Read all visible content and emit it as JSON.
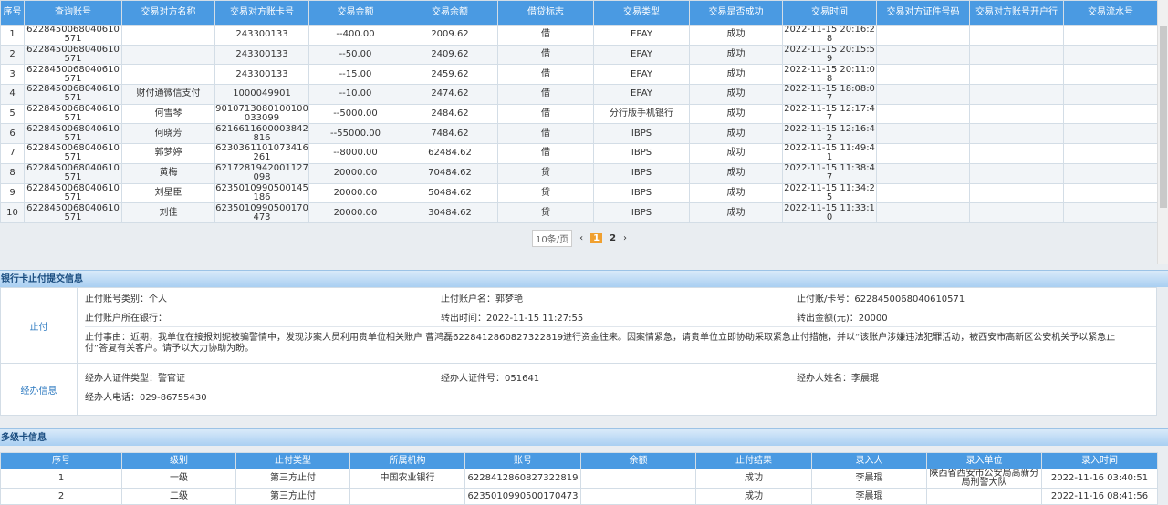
{
  "transactions": {
    "headers": [
      "序号",
      "查询账号",
      "交易对方名称",
      "交易对方账卡号",
      "交易金额",
      "交易余额",
      "借贷标志",
      "交易类型",
      "交易是否成功",
      "交易时间",
      "交易对方证件号码",
      "交易对方账号开户行",
      "交易流水号"
    ],
    "rows": [
      [
        "1",
        "6228450068040610571",
        "",
        "243300133",
        "--400.00",
        "2009.62",
        "借",
        "EPAY",
        "成功",
        "2022-11-15 20:16:28",
        "",
        "",
        ""
      ],
      [
        "2",
        "6228450068040610571",
        "",
        "243300133",
        "--50.00",
        "2409.62",
        "借",
        "EPAY",
        "成功",
        "2022-11-15 20:15:59",
        "",
        "",
        ""
      ],
      [
        "3",
        "6228450068040610571",
        "",
        "243300133",
        "--15.00",
        "2459.62",
        "借",
        "EPAY",
        "成功",
        "2022-11-15 20:11:08",
        "",
        "",
        ""
      ],
      [
        "4",
        "6228450068040610571",
        "财付通微信支付",
        "1000049901",
        "--10.00",
        "2474.62",
        "借",
        "EPAY",
        "成功",
        "2022-11-15 18:08:07",
        "",
        "",
        ""
      ],
      [
        "5",
        "6228450068040610571",
        "何雪琴",
        "9010713080100100033099",
        "--5000.00",
        "2484.62",
        "借",
        "分行版手机银行",
        "成功",
        "2022-11-15 12:17:47",
        "",
        "",
        ""
      ],
      [
        "6",
        "6228450068040610571",
        "何晓芳",
        "6216611600003842816",
        "--55000.00",
        "7484.62",
        "借",
        "IBPS",
        "成功",
        "2022-11-15 12:16:42",
        "",
        "",
        ""
      ],
      [
        "7",
        "6228450068040610571",
        "郭梦婷",
        "6230361101073416261",
        "--8000.00",
        "62484.62",
        "借",
        "IBPS",
        "成功",
        "2022-11-15 11:49:41",
        "",
        "",
        ""
      ],
      [
        "8",
        "6228450068040610571",
        "黄梅",
        "6217281942001127098",
        "20000.00",
        "70484.62",
        "贷",
        "IBPS",
        "成功",
        "2022-11-15 11:38:47",
        "",
        "",
        ""
      ],
      [
        "9",
        "6228450068040610571",
        "刘星臣",
        "6235010990500145186",
        "20000.00",
        "50484.62",
        "贷",
        "IBPS",
        "成功",
        "2022-11-15 11:34:25",
        "",
        "",
        ""
      ],
      [
        "10",
        "6228450068040610571",
        "刘佳",
        "6235010990500170473",
        "20000.00",
        "30484.62",
        "贷",
        "IBPS",
        "成功",
        "2022-11-15 11:33:10",
        "",
        "",
        ""
      ]
    ]
  },
  "pager": {
    "page_size": "10条/页",
    "prev": "‹",
    "current": "1",
    "page2": "2",
    "next": "›"
  },
  "stop_section": {
    "title": "银行卡止付提交信息",
    "stop_label": "止付",
    "account_type": "止付账号类别：个人",
    "account_name": "止付账户名：郭梦艳",
    "card_no": "止付账/卡号：6228450068040610571",
    "bank": "止付账户所在银行：",
    "out_time": "转出时间：2022-11-15 11:27:55",
    "out_amount": "转出金额(元)：20000",
    "reason": "止付事由：近期，我单位在接报刘妮被骗警情中，发现涉案人员利用贵单位相关账户 曹鸿磊6228412860827322819进行资金往来。因案情紧急，请贵单位立即协助采取紧急止付措施，并以“该账户涉嫌违法犯罪活动，被西安市高新区公安机关予以紧急止付”答复有关客户。请予以大力协助为盼。",
    "handler_label": "经办信息",
    "handler_id_type": "经办人证件类型：警官证",
    "handler_id_no": "经办人证件号：051641",
    "handler_name": "经办人姓名：李晨琨",
    "handler_phone": "经办人电话：029-86755430"
  },
  "multi_card": {
    "title": "多级卡信息",
    "headers": [
      "序号",
      "级别",
      "止付类型",
      "所属机构",
      "账号",
      "余额",
      "止付结果",
      "录入人",
      "录入单位",
      "录入时间"
    ],
    "rows": [
      [
        "1",
        "一级",
        "第三方止付",
        "中国农业银行",
        "6228412860827322819",
        "",
        "成功",
        "李晨琨",
        "陕西省西安市公安局高新分局刑警大队",
        "2022-11-16 03:40:51"
      ],
      [
        "2",
        "二级",
        "第三方止付",
        "",
        "6235010990500170473",
        "",
        "成功",
        "李晨琨",
        "",
        "2022-11-16 08:41:56"
      ]
    ]
  }
}
